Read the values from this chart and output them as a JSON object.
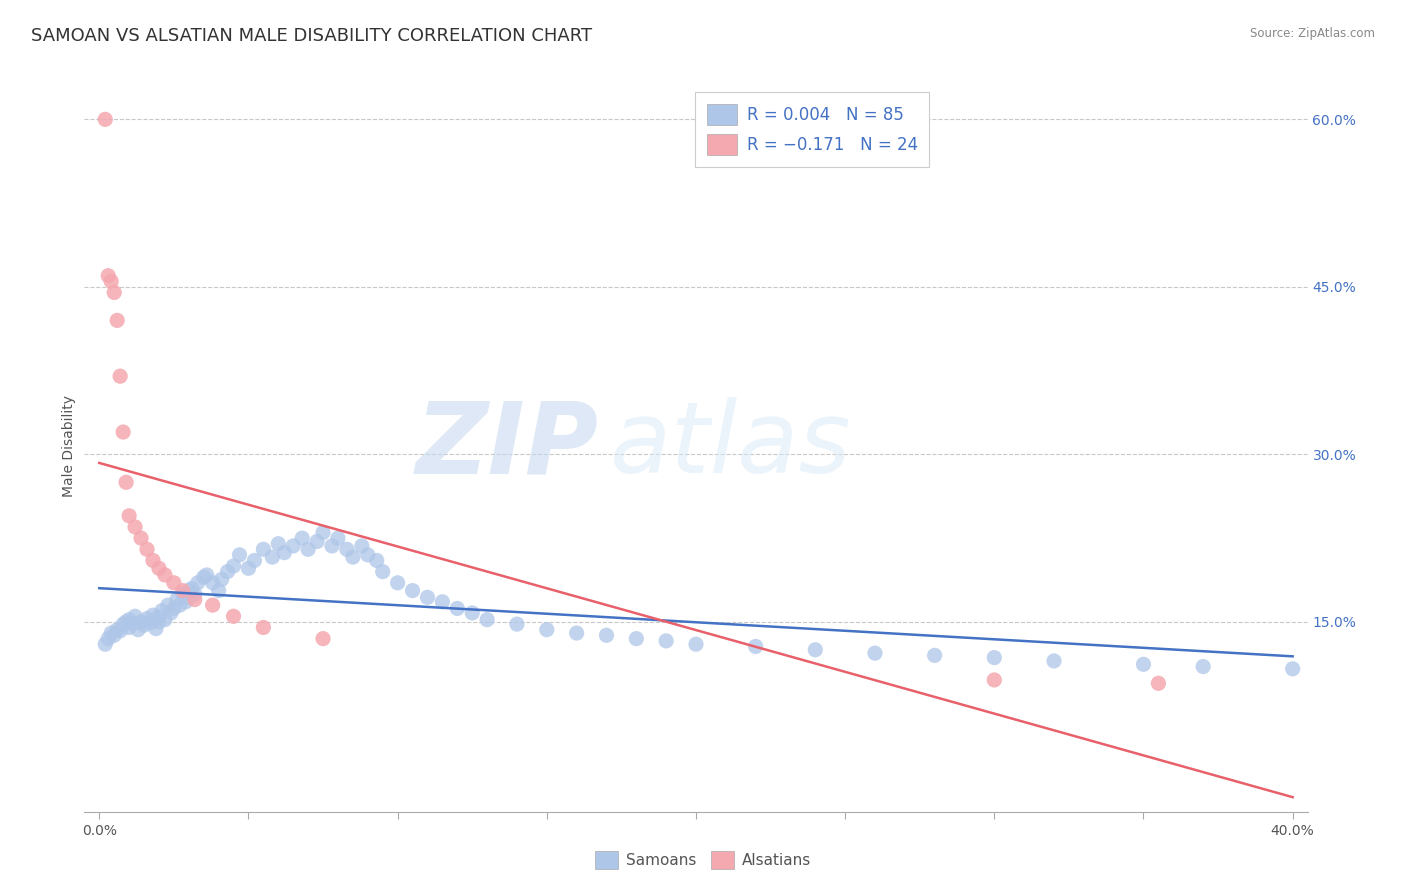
{
  "title": "SAMOAN VS ALSATIAN MALE DISABILITY CORRELATION CHART",
  "source": "Source: ZipAtlas.com",
  "ylabel": "Male Disability",
  "xlim": [
    -0.005,
    0.405
  ],
  "ylim": [
    -0.02,
    0.635
  ],
  "x_ticks": [
    0.0,
    0.05,
    0.1,
    0.15,
    0.2,
    0.25,
    0.3,
    0.35,
    0.4
  ],
  "x_tick_labels_show": [
    "0.0%",
    "",
    "",
    "",
    "",
    "",
    "",
    "",
    "40.0%"
  ],
  "y_ticks": [
    0.15,
    0.3,
    0.45,
    0.6
  ],
  "y_tick_labels": [
    "15.0%",
    "30.0%",
    "45.0%",
    "60.0%"
  ],
  "grid_color": "#c8c8c8",
  "background_color": "#ffffff",
  "samoan_color": "#aec6e8",
  "alsatian_color": "#f4a8b0",
  "samoan_line_color": "#4472c4",
  "alsatian_line_color": "#e8606a",
  "legend_R_samoan": "R = 0.004",
  "legend_N_samoan": "N = 85",
  "legend_R_alsatian": "R = −0.171",
  "legend_N_alsatian": "N = 24",
  "watermark_ZIP": "ZIP",
  "watermark_atlas": "atlas",
  "samoan_x": [
    0.002,
    0.003,
    0.004,
    0.005,
    0.006,
    0.007,
    0.008,
    0.009,
    0.01,
    0.01,
    0.011,
    0.012,
    0.013,
    0.014,
    0.015,
    0.016,
    0.017,
    0.018,
    0.019,
    0.02,
    0.02,
    0.021,
    0.022,
    0.023,
    0.024,
    0.025,
    0.026,
    0.027,
    0.028,
    0.029,
    0.03,
    0.03,
    0.031,
    0.032,
    0.033,
    0.035,
    0.036,
    0.038,
    0.04,
    0.041,
    0.043,
    0.045,
    0.047,
    0.05,
    0.052,
    0.055,
    0.058,
    0.06,
    0.062,
    0.065,
    0.068,
    0.07,
    0.073,
    0.075,
    0.078,
    0.08,
    0.083,
    0.085,
    0.088,
    0.09,
    0.093,
    0.095,
    0.1,
    0.105,
    0.11,
    0.115,
    0.12,
    0.125,
    0.13,
    0.14,
    0.15,
    0.16,
    0.17,
    0.18,
    0.19,
    0.2,
    0.22,
    0.24,
    0.26,
    0.28,
    0.3,
    0.32,
    0.35,
    0.37,
    0.4
  ],
  "samoan_y": [
    0.13,
    0.135,
    0.14,
    0.138,
    0.143,
    0.142,
    0.148,
    0.15,
    0.145,
    0.152,
    0.148,
    0.155,
    0.143,
    0.15,
    0.147,
    0.153,
    0.149,
    0.156,
    0.144,
    0.15,
    0.155,
    0.16,
    0.152,
    0.165,
    0.158,
    0.162,
    0.17,
    0.165,
    0.175,
    0.168,
    0.172,
    0.178,
    0.18,
    0.175,
    0.185,
    0.19,
    0.192,
    0.185,
    0.178,
    0.188,
    0.195,
    0.2,
    0.21,
    0.198,
    0.205,
    0.215,
    0.208,
    0.22,
    0.212,
    0.218,
    0.225,
    0.215,
    0.222,
    0.23,
    0.218,
    0.225,
    0.215,
    0.208,
    0.218,
    0.21,
    0.205,
    0.195,
    0.185,
    0.178,
    0.172,
    0.168,
    0.162,
    0.158,
    0.152,
    0.148,
    0.143,
    0.14,
    0.138,
    0.135,
    0.133,
    0.13,
    0.128,
    0.125,
    0.122,
    0.12,
    0.118,
    0.115,
    0.112,
    0.11,
    0.108
  ],
  "alsatian_x": [
    0.002,
    0.003,
    0.004,
    0.005,
    0.006,
    0.007,
    0.008,
    0.009,
    0.01,
    0.012,
    0.014,
    0.016,
    0.018,
    0.02,
    0.022,
    0.025,
    0.028,
    0.032,
    0.038,
    0.045,
    0.055,
    0.075,
    0.3,
    0.355
  ],
  "alsatian_y": [
    0.6,
    0.46,
    0.455,
    0.445,
    0.42,
    0.37,
    0.32,
    0.275,
    0.245,
    0.235,
    0.225,
    0.215,
    0.205,
    0.198,
    0.192,
    0.185,
    0.178,
    0.17,
    0.165,
    0.155,
    0.145,
    0.135,
    0.098,
    0.095
  ],
  "title_fontsize": 13,
  "axis_label_fontsize": 10,
  "tick_fontsize": 10,
  "legend_fontsize": 12
}
